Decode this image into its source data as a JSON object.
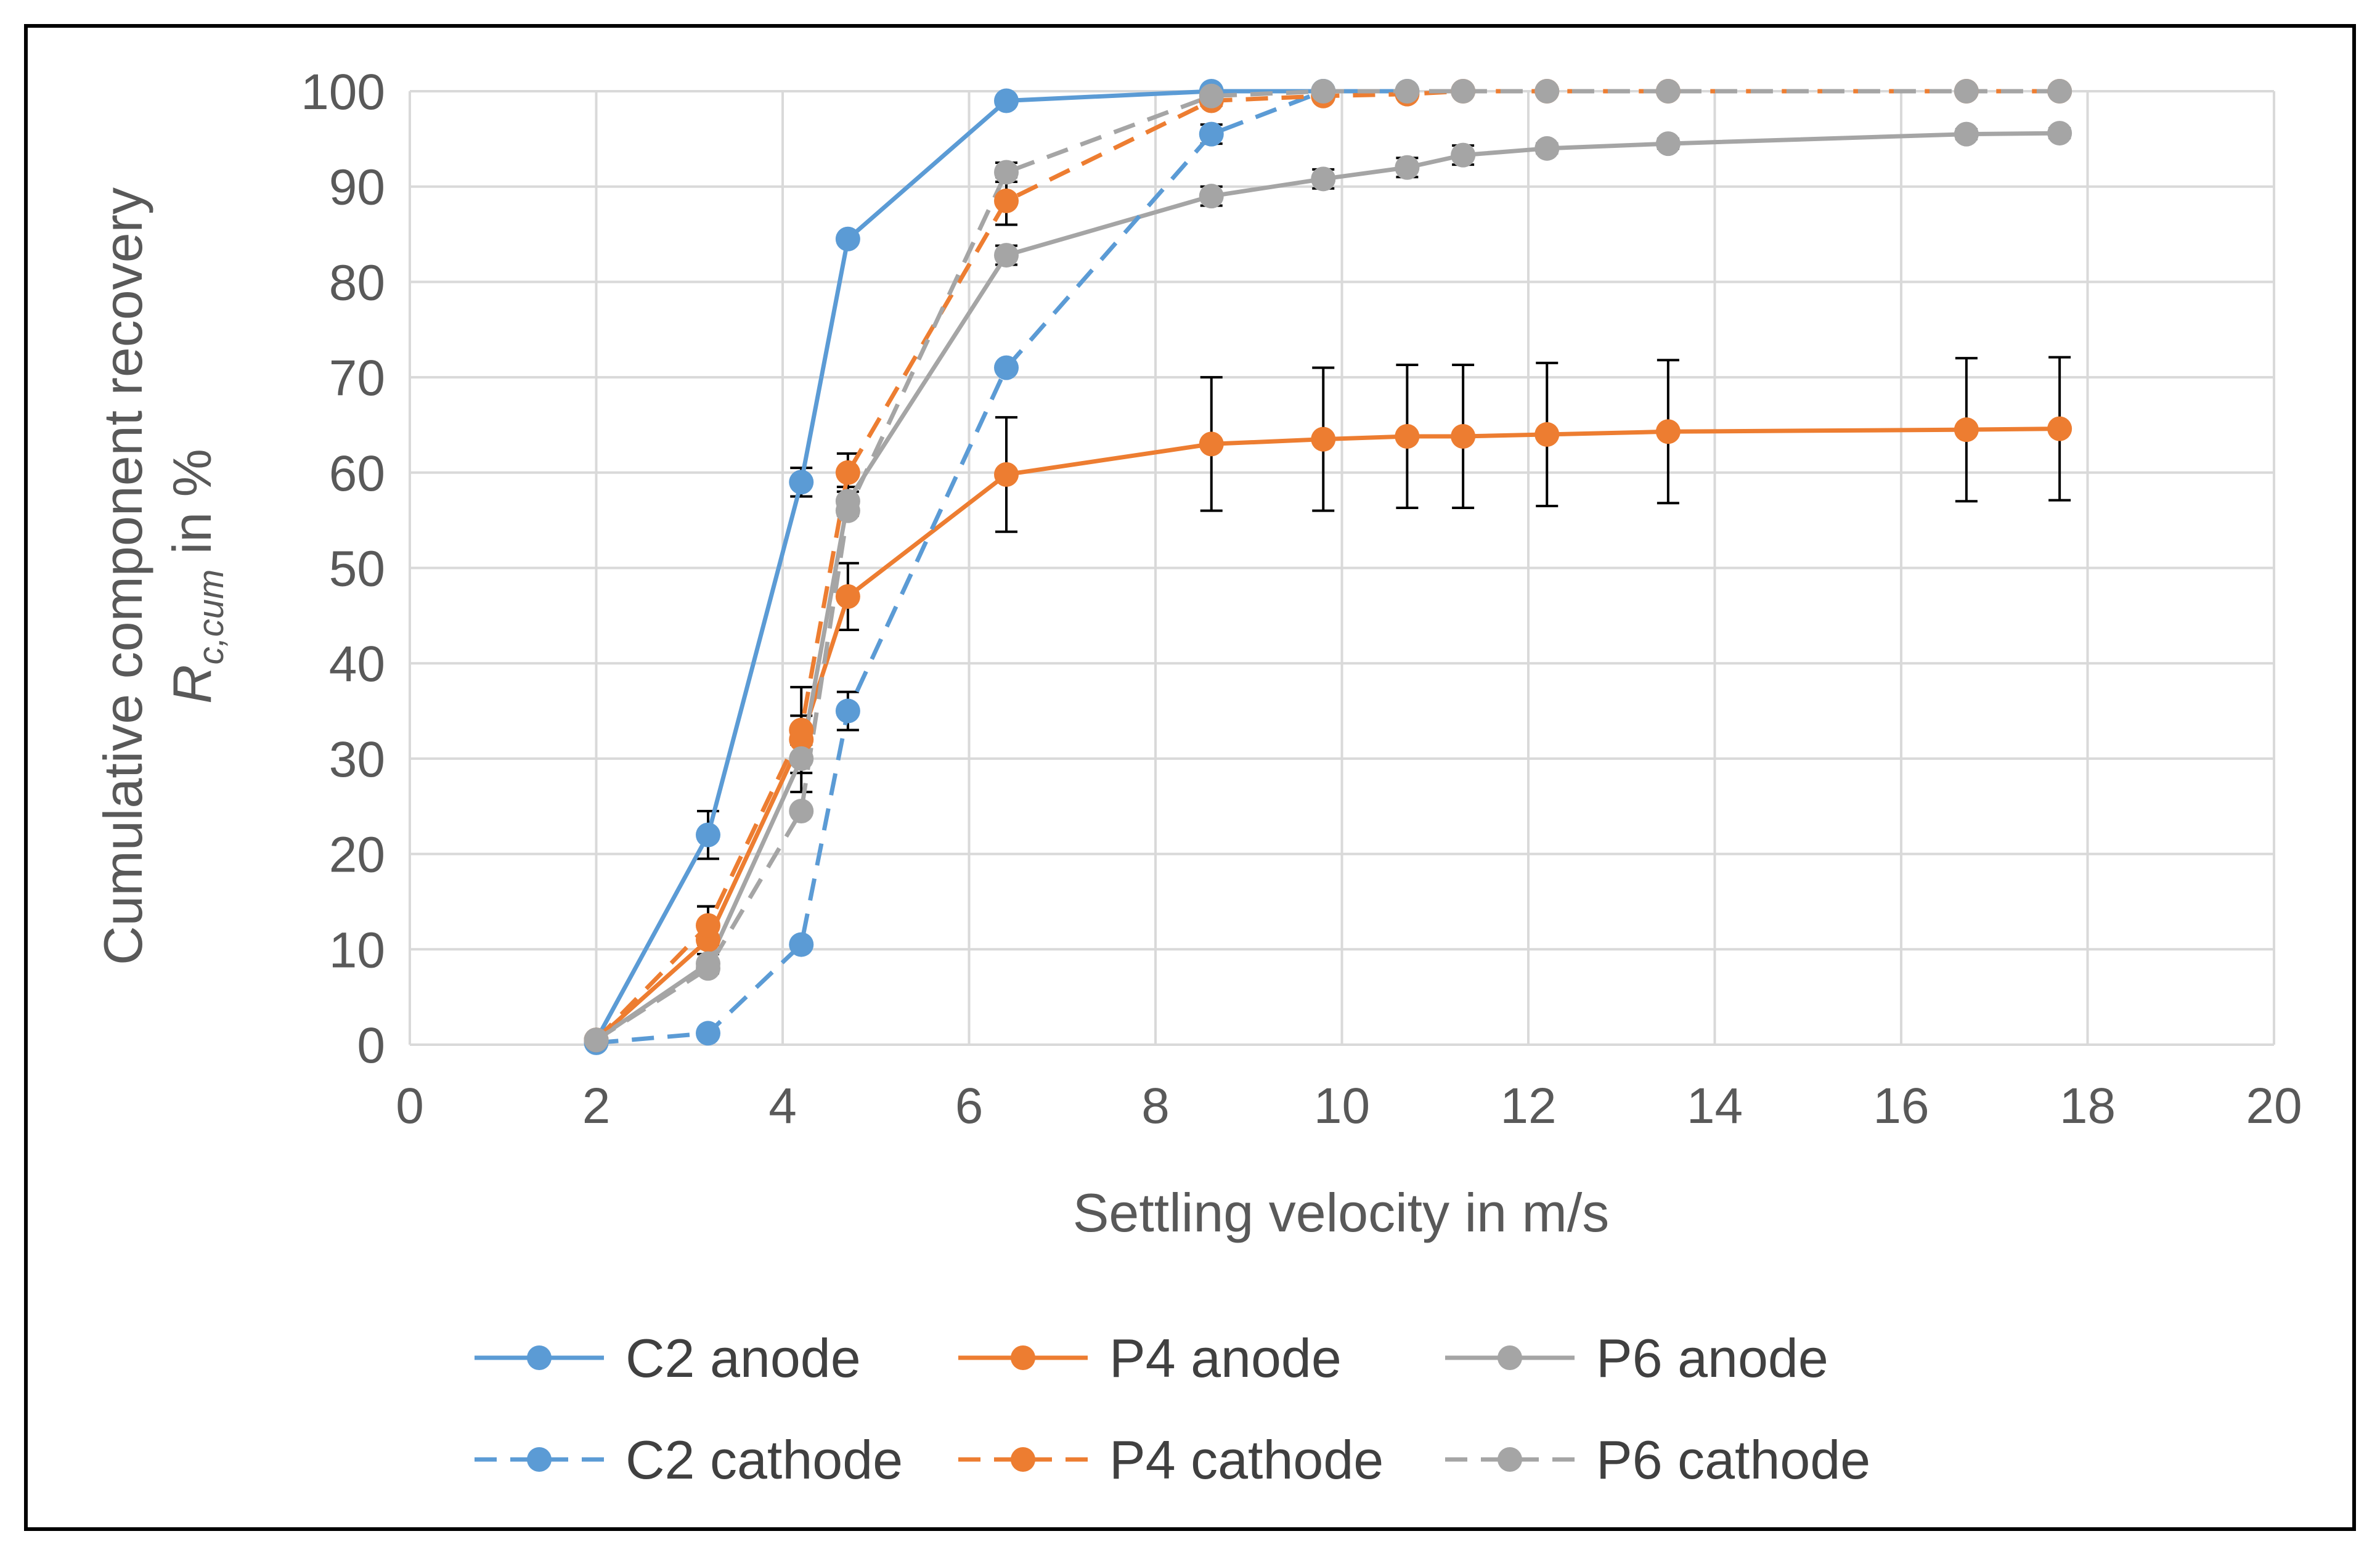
{
  "chart_data": {
    "type": "line",
    "xlabel": "Settling velocity in m/s",
    "ylabel": {
      "line1": "Cumulative component recovery",
      "symbol": "R",
      "subscript": "c,cum",
      "suffix": " in %"
    },
    "xlim": [
      0,
      20
    ],
    "ylim": [
      0,
      100
    ],
    "xticks": [
      "0",
      "2",
      "4",
      "6",
      "8",
      "10",
      "12",
      "14",
      "16",
      "18",
      "20"
    ],
    "yticks": [
      "0",
      "10",
      "20",
      "30",
      "40",
      "50",
      "60",
      "70",
      "80",
      "90",
      "100"
    ],
    "grid": true,
    "legend_position": "bottom",
    "series": [
      {
        "name": "C2 anode",
        "color": "#5B9BD5",
        "dash": "solid",
        "x": [
          2.0,
          3.2,
          4.2,
          4.7,
          6.4,
          8.6,
          9.8,
          10.7
        ],
        "y": [
          0.5,
          22,
          59,
          84.5,
          99,
          100,
          100,
          100
        ],
        "err": [
          0,
          2.5,
          1.5,
          0,
          0,
          0,
          0,
          0
        ]
      },
      {
        "name": "P4 anode",
        "color": "#ED7D31",
        "dash": "solid",
        "x": [
          2.0,
          3.2,
          4.2,
          4.7,
          6.4,
          8.6,
          9.8,
          10.7,
          11.3,
          12.2,
          13.5,
          16.7,
          17.7
        ],
        "y": [
          0.5,
          11,
          32,
          47,
          59.8,
          63,
          63.5,
          63.8,
          63.8,
          64,
          64.3,
          64.5,
          64.6
        ],
        "err": [
          0,
          3.5,
          5.5,
          3.5,
          6,
          7,
          7.5,
          7.5,
          7.5,
          7.5,
          7.5,
          7.5,
          7.5
        ]
      },
      {
        "name": "P6 anode",
        "color": "#A5A5A5",
        "dash": "solid",
        "x": [
          2.0,
          3.2,
          4.2,
          4.7,
          6.4,
          8.6,
          9.8,
          10.7,
          11.3,
          12.2,
          13.5,
          16.7,
          17.7
        ],
        "y": [
          0.5,
          8.5,
          30,
          57,
          82.8,
          89,
          90.8,
          92,
          93.3,
          94,
          94.5,
          95.5,
          95.6
        ],
        "err": [
          0,
          1,
          1.5,
          1.5,
          1,
          1,
          1,
          1,
          1,
          0.5,
          0.5,
          0.5,
          0.5
        ]
      },
      {
        "name": "C2 cathode",
        "color": "#5B9BD5",
        "dash": "dashed",
        "x": [
          2.0,
          3.2,
          4.2,
          4.7,
          6.4,
          8.6,
          9.8
        ],
        "y": [
          0.2,
          1.2,
          10.5,
          35,
          71,
          95.5,
          100
        ],
        "err": [
          0,
          0,
          0,
          2,
          0,
          1,
          0
        ]
      },
      {
        "name": "P4 cathode",
        "color": "#ED7D31",
        "dash": "dashed",
        "x": [
          2.0,
          3.2,
          4.2,
          4.7,
          6.4,
          8.6,
          9.8,
          10.7,
          11.3,
          12.2,
          13.5,
          16.7,
          17.7
        ],
        "y": [
          0.5,
          12.5,
          33,
          60,
          88.5,
          99,
          99.5,
          99.7,
          100,
          100,
          100,
          100,
          100
        ],
        "err": [
          0,
          2,
          1.5,
          2,
          2.5,
          0.5,
          0,
          0,
          0,
          0,
          0,
          0,
          0
        ]
      },
      {
        "name": "P6 cathode",
        "color": "#A5A5A5",
        "dash": "dashed",
        "x": [
          2.0,
          3.2,
          4.2,
          4.7,
          6.4,
          8.6,
          9.8,
          10.7,
          11.3,
          12.2,
          13.5,
          16.7,
          17.7
        ],
        "y": [
          0.5,
          8,
          24.5,
          56,
          91.5,
          99.5,
          100,
          100,
          100,
          100,
          100,
          100,
          100
        ],
        "err": [
          0,
          0,
          0,
          0,
          1,
          0,
          0,
          0,
          0,
          0,
          0,
          0,
          0
        ]
      }
    ]
  }
}
